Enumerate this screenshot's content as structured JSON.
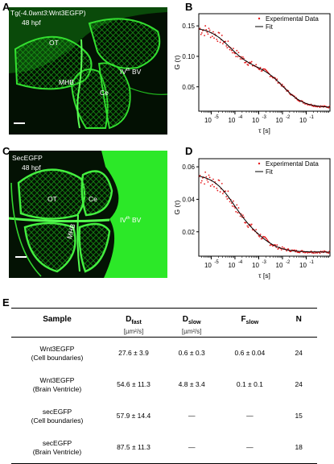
{
  "panels": {
    "A": "A",
    "B": "B",
    "C": "C",
    "D": "D",
    "E": "E"
  },
  "micrographs": {
    "A": {
      "title_prefix": "Tg(-4.0",
      "title_gene": "wnt3",
      "title_suffix": ":Wnt3EGFP)",
      "stage": "48 hpf",
      "label_ot": "OT",
      "label_mhb": "MHB",
      "label_ce": "Ce",
      "label_bv_pre": "IV",
      "label_bv_sup": "th",
      "label_bv_post": " BV"
    },
    "C": {
      "title": "SecEGFP",
      "stage": "48 hpf",
      "label_ot": "OT",
      "label_ce": "Ce",
      "label_mhb": "MHB",
      "label_bv_pre": "IV",
      "label_bv_sup": "th",
      "label_bv_post": " BV"
    },
    "fluor_color": "#22d81e"
  },
  "chart_data": [
    {
      "type": "scatter",
      "panel": "B",
      "ylabel": "G (τ)",
      "xlabel": "τ [s]",
      "x_scale": "log",
      "xlim": [
        3e-06,
        1
      ],
      "ylim": [
        0.01,
        0.17
      ],
      "yticks": [
        "0.05",
        "0.10",
        "0.15"
      ],
      "ytick_values": [
        0.05,
        0.1,
        0.15
      ],
      "xticks_base": "10",
      "xticks_exp": [
        "-5",
        "-4",
        "-3",
        "-2",
        "-1"
      ],
      "xtick_values": [
        1e-05,
        0.0001,
        0.001,
        0.01,
        0.1
      ],
      "legend": [
        "Experimental Data",
        "Fit"
      ],
      "legend_position": "top-right",
      "fit_params": {
        "amp_fast": 0.065,
        "tau_fast": 6e-05,
        "amp_slow": 0.067,
        "tau_slow": 0.011,
        "offset": 0.016
      },
      "noise_level": 0.011,
      "data_color": "#e41a1c",
      "fit_color": "#000000"
    },
    {
      "type": "scatter",
      "panel": "D",
      "ylabel": "G (τ)",
      "xlabel": "τ [s]",
      "x_scale": "log",
      "xlim": [
        3e-06,
        1
      ],
      "ylim": [
        0.005,
        0.065
      ],
      "yticks": [
        "0.02",
        "0.04",
        "0.06"
      ],
      "ytick_values": [
        0.02,
        0.04,
        0.06
      ],
      "xticks_base": "10",
      "xticks_exp": [
        "-5",
        "-4",
        "-3",
        "-2",
        "-1"
      ],
      "xtick_values": [
        1e-05,
        0.0001,
        0.001,
        0.01,
        0.1
      ],
      "legend": [
        "Experimental Data",
        "Fit"
      ],
      "legend_position": "top-right",
      "fit_params": {
        "amp_fast": 0.034,
        "tau_fast": 8e-05,
        "amp_slow": 0.014,
        "tau_slow": 0.0015,
        "offset": 0.0075
      },
      "noise_level": 0.005,
      "data_color": "#e41a1c",
      "fit_color": "#000000"
    }
  ],
  "table": {
    "headers": {
      "sample": "Sample",
      "dfast_main": "D",
      "dfast_sub": "fast",
      "dfast_unit": "[µm²/s]",
      "dslow_main": "D",
      "dslow_sub": "slow",
      "dslow_unit": "[µm²/s]",
      "fslow_main": "F",
      "fslow_sub": "slow",
      "n": "N"
    },
    "rows": [
      {
        "sample_line1": "Wnt3EGFP",
        "sample_line2": "(Cell boundaries)",
        "dfast": "27.6 ± 3.9",
        "dslow": "0.6 ± 0.3",
        "fslow": "0.6 ± 0.04",
        "n": "24"
      },
      {
        "sample_line1": "Wnt3EGFP",
        "sample_line2": "(Brain Ventricle)",
        "dfast": "54.6 ± 11.3",
        "dslow": "4.8 ± 3.4",
        "fslow": "0.1 ± 0.1",
        "n": "24"
      },
      {
        "sample_line1": "secEGFP",
        "sample_line2": "(Cell boundaries)",
        "dfast": "57.9 ± 14.4",
        "dslow": "—",
        "fslow": "—",
        "n": "15"
      },
      {
        "sample_line1": "secEGFP",
        "sample_line2": "(Brain Ventricle)",
        "dfast": "87.5 ± 11.3",
        "dslow": "—",
        "fslow": "—",
        "n": "18"
      }
    ]
  }
}
